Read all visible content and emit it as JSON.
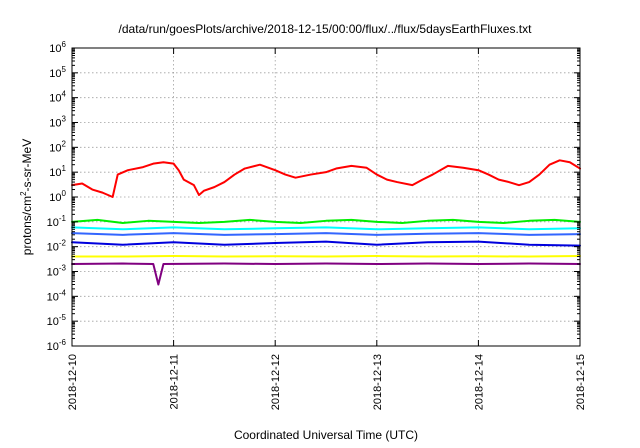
{
  "chart_data": {
    "type": "line",
    "title": "/data/run/goesPlots/archive/2018-12-15/00:00/flux/../flux/5daysEarthFluxes.txt",
    "xlabel": "Coordinated Universal Time (UTC)",
    "ylabel": {
      "base": "protons/cm",
      "sup": "2",
      "rest": "-s-sr-MeV"
    },
    "x_ticks": [
      "2018-12-10",
      "2018-12-11",
      "2018-12-12",
      "2018-12-13",
      "2018-12-14",
      "2018-12-15"
    ],
    "xlim": [
      0,
      5
    ],
    "y_scale": "log",
    "ylim_exp": [
      -6,
      6
    ],
    "y_tick_exps": [
      "-6",
      "-5",
      "-4",
      "-3",
      "-2",
      "-1",
      "0",
      "1",
      "2",
      "3",
      "4",
      "5",
      "6"
    ],
    "y_tick_base": "10",
    "grid": true,
    "legend": "none",
    "x_unit": "days since 2018-12-10 00:00",
    "series": [
      {
        "color": "#ff0000",
        "points": [
          [
            0,
            3
          ],
          [
            0.1,
            3.5
          ],
          [
            0.2,
            2
          ],
          [
            0.3,
            1.5
          ],
          [
            0.4,
            1
          ],
          [
            0.45,
            8
          ],
          [
            0.55,
            12
          ],
          [
            0.7,
            16
          ],
          [
            0.8,
            22
          ],
          [
            0.9,
            25
          ],
          [
            1.0,
            22
          ],
          [
            1.05,
            12
          ],
          [
            1.1,
            5
          ],
          [
            1.2,
            3
          ],
          [
            1.25,
            1.2
          ],
          [
            1.3,
            1.8
          ],
          [
            1.4,
            2.5
          ],
          [
            1.5,
            4
          ],
          [
            1.6,
            8
          ],
          [
            1.7,
            14
          ],
          [
            1.85,
            20
          ],
          [
            2.0,
            12
          ],
          [
            2.1,
            8
          ],
          [
            2.2,
            6
          ],
          [
            2.35,
            8
          ],
          [
            2.5,
            10
          ],
          [
            2.6,
            14
          ],
          [
            2.75,
            18
          ],
          [
            2.9,
            15
          ],
          [
            3.0,
            8
          ],
          [
            3.1,
            5
          ],
          [
            3.2,
            4
          ],
          [
            3.35,
            3
          ],
          [
            3.45,
            5
          ],
          [
            3.55,
            8
          ],
          [
            3.7,
            18
          ],
          [
            3.85,
            15
          ],
          [
            4.0,
            12
          ],
          [
            4.1,
            8
          ],
          [
            4.2,
            5
          ],
          [
            4.3,
            4
          ],
          [
            4.4,
            3
          ],
          [
            4.5,
            4
          ],
          [
            4.6,
            8
          ],
          [
            4.7,
            20
          ],
          [
            4.8,
            30
          ],
          [
            4.9,
            25
          ],
          [
            5.0,
            14
          ]
        ]
      },
      {
        "color": "#00ee00",
        "points": [
          [
            0,
            0.1
          ],
          [
            0.25,
            0.12
          ],
          [
            0.5,
            0.09
          ],
          [
            0.75,
            0.11
          ],
          [
            1.0,
            0.1
          ],
          [
            1.25,
            0.09
          ],
          [
            1.5,
            0.1
          ],
          [
            1.75,
            0.12
          ],
          [
            2.0,
            0.1
          ],
          [
            2.25,
            0.09
          ],
          [
            2.5,
            0.11
          ],
          [
            2.75,
            0.12
          ],
          [
            3.0,
            0.1
          ],
          [
            3.25,
            0.09
          ],
          [
            3.5,
            0.11
          ],
          [
            3.75,
            0.12
          ],
          [
            4.0,
            0.1
          ],
          [
            4.25,
            0.09
          ],
          [
            4.5,
            0.11
          ],
          [
            4.75,
            0.12
          ],
          [
            5.0,
            0.1
          ]
        ]
      },
      {
        "color": "#00ffff",
        "points": [
          [
            0,
            0.06
          ],
          [
            0.5,
            0.05
          ],
          [
            1.0,
            0.06
          ],
          [
            1.5,
            0.05
          ],
          [
            2.0,
            0.055
          ],
          [
            2.5,
            0.06
          ],
          [
            3.0,
            0.05
          ],
          [
            3.5,
            0.055
          ],
          [
            4.0,
            0.06
          ],
          [
            4.5,
            0.05
          ],
          [
            5.0,
            0.055
          ]
        ]
      },
      {
        "color": "#3366ff",
        "points": [
          [
            0,
            0.035
          ],
          [
            0.5,
            0.03
          ],
          [
            1.0,
            0.035
          ],
          [
            1.5,
            0.03
          ],
          [
            2.0,
            0.032
          ],
          [
            2.5,
            0.035
          ],
          [
            3.0,
            0.03
          ],
          [
            3.5,
            0.033
          ],
          [
            4.0,
            0.035
          ],
          [
            4.5,
            0.03
          ],
          [
            5.0,
            0.032
          ]
        ]
      },
      {
        "color": "#0000dd",
        "points": [
          [
            0,
            0.015
          ],
          [
            0.5,
            0.012
          ],
          [
            1.0,
            0.015
          ],
          [
            1.5,
            0.012
          ],
          [
            2.0,
            0.014
          ],
          [
            2.5,
            0.016
          ],
          [
            3.0,
            0.012
          ],
          [
            3.5,
            0.015
          ],
          [
            4.0,
            0.016
          ],
          [
            4.5,
            0.012
          ],
          [
            5.0,
            0.011
          ]
        ]
      },
      {
        "color": "#ffff00",
        "points": [
          [
            0,
            0.004
          ],
          [
            0.5,
            0.004
          ],
          [
            1.0,
            0.0042
          ],
          [
            1.5,
            0.004
          ],
          [
            2.0,
            0.0041
          ],
          [
            2.5,
            0.004
          ],
          [
            3.0,
            0.0042
          ],
          [
            3.5,
            0.004
          ],
          [
            4.0,
            0.0041
          ],
          [
            4.5,
            0.004
          ],
          [
            5.0,
            0.0042
          ]
        ]
      },
      {
        "color": "#800080",
        "points": [
          [
            0,
            0.002
          ],
          [
            0.5,
            0.0021
          ],
          [
            0.8,
            0.002
          ],
          [
            0.85,
            0.0003
          ],
          [
            0.9,
            0.002
          ],
          [
            1.5,
            0.0021
          ],
          [
            2.0,
            0.002
          ],
          [
            2.5,
            0.0021
          ],
          [
            3.0,
            0.002
          ],
          [
            3.5,
            0.0021
          ],
          [
            4.0,
            0.002
          ],
          [
            4.5,
            0.0021
          ],
          [
            5.0,
            0.002
          ]
        ]
      }
    ]
  }
}
